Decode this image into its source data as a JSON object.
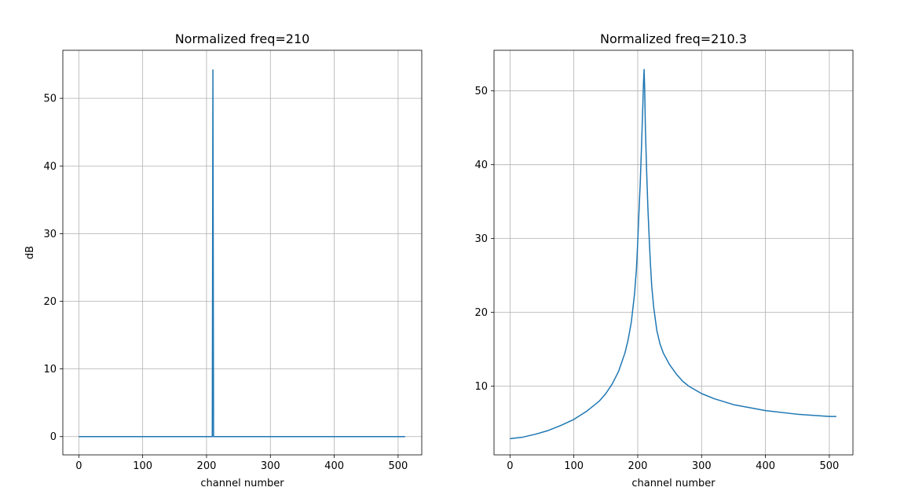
{
  "chart_data": [
    {
      "type": "line",
      "title": "Normalized freq=210",
      "xlabel": "channel number",
      "ylabel": "dB",
      "xlim": [
        -25,
        537
      ],
      "ylim": [
        -2.7,
        57.1
      ],
      "xticks": [
        0,
        100,
        200,
        300,
        400,
        500
      ],
      "yticks": [
        0,
        10,
        20,
        30,
        40,
        50
      ],
      "grid": true,
      "line_color": "#1f77b4",
      "series": [
        {
          "x": [
            0,
            100,
            200,
            208,
            209,
            210,
            211,
            212,
            300,
            400,
            511
          ],
          "y": [
            0,
            0,
            0,
            0,
            0,
            54.2,
            0,
            0,
            0,
            0,
            0
          ]
        }
      ]
    },
    {
      "type": "line",
      "title": "Normalized freq=210.3",
      "xlabel": "channel number",
      "ylabel": "",
      "xlim": [
        -25,
        537
      ],
      "ylim": [
        0.7,
        55.5
      ],
      "xticks": [
        0,
        100,
        200,
        300,
        400,
        500
      ],
      "yticks": [
        10,
        20,
        30,
        40,
        50
      ],
      "grid": true,
      "line_color": "#1f77b4",
      "series": [
        {
          "x": [
            0,
            20,
            40,
            60,
            80,
            100,
            120,
            140,
            150,
            160,
            170,
            180,
            185,
            190,
            195,
            198,
            200,
            202,
            204,
            206,
            208,
            209,
            210,
            211,
            212,
            214,
            216,
            218,
            220,
            222,
            225,
            230,
            235,
            240,
            250,
            260,
            270,
            280,
            300,
            320,
            350,
            400,
            450,
            500,
            511
          ],
          "y": [
            2.9,
            3.1,
            3.5,
            4.0,
            4.7,
            5.5,
            6.6,
            8.0,
            9.0,
            10.3,
            12.0,
            14.5,
            16.3,
            18.7,
            22.5,
            25.9,
            29.5,
            33.7,
            37.6,
            42.6,
            48.0,
            51.0,
            52.9,
            50.0,
            45.0,
            39.0,
            34.0,
            30.0,
            26.4,
            23.5,
            20.7,
            17.5,
            15.7,
            14.5,
            12.9,
            11.7,
            10.7,
            10.0,
            9.0,
            8.3,
            7.5,
            6.7,
            6.2,
            5.9,
            5.9
          ]
        }
      ]
    }
  ]
}
